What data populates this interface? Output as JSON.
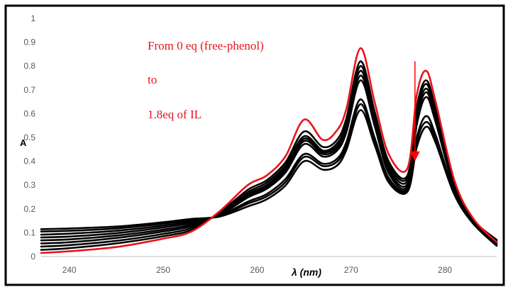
{
  "chart_data": {
    "type": "line",
    "ylabel": "A",
    "xlabel": "λ (nm)",
    "xlim": [
      237,
      285.5
    ],
    "ylim": [
      0,
      1
    ],
    "x_ticks": [
      240,
      250,
      260,
      270,
      280
    ],
    "y_ticks": [
      "0",
      "0.1",
      "0.2",
      "0.3",
      "0.4",
      "0.5",
      "0.6",
      "0.7",
      "0.8",
      "0.9",
      "1"
    ],
    "grid": false,
    "legend": "none",
    "annotations": [
      "From 0 eq (free-phenol)",
      "to",
      "1.8eq of IL"
    ],
    "arrow": {
      "x": 276.8,
      "y_from": 0.82,
      "y_to": 0.4,
      "color": "#ff0000",
      "meaning": "decreasing absorbance with added IL"
    },
    "colors": {
      "first_series": "#e8141b",
      "other_series": "#000000"
    },
    "series": [
      {
        "color": "#e8141b",
        "values": [
          [
            237,
            0.015
          ],
          [
            240,
            0.022
          ],
          [
            245,
            0.04
          ],
          [
            250,
            0.075
          ],
          [
            253,
            0.105
          ],
          [
            256,
            0.19
          ],
          [
            259,
            0.3
          ],
          [
            261,
            0.34
          ],
          [
            263,
            0.42
          ],
          [
            265,
            0.575
          ],
          [
            267,
            0.49
          ],
          [
            268.5,
            0.53
          ],
          [
            269.5,
            0.62
          ],
          [
            271,
            0.875
          ],
          [
            272.5,
            0.65
          ],
          [
            274,
            0.43
          ],
          [
            276,
            0.37
          ],
          [
            277,
            0.68
          ],
          [
            278,
            0.78
          ],
          [
            279,
            0.65
          ],
          [
            281,
            0.32
          ],
          [
            283,
            0.16
          ],
          [
            285.5,
            0.06
          ]
        ]
      },
      {
        "color": "#000000",
        "values": [
          [
            237,
            0.028
          ],
          [
            240,
            0.035
          ],
          [
            245,
            0.055
          ],
          [
            250,
            0.085
          ],
          [
            253,
            0.112
          ],
          [
            256,
            0.185
          ],
          [
            259,
            0.28
          ],
          [
            261,
            0.32
          ],
          [
            263,
            0.395
          ],
          [
            265,
            0.525
          ],
          [
            267,
            0.46
          ],
          [
            268.5,
            0.49
          ],
          [
            269.5,
            0.58
          ],
          [
            271,
            0.82
          ],
          [
            272.5,
            0.61
          ],
          [
            274,
            0.4
          ],
          [
            276,
            0.34
          ],
          [
            277,
            0.63
          ],
          [
            278,
            0.74
          ],
          [
            279,
            0.62
          ],
          [
            281,
            0.305
          ],
          [
            283,
            0.155
          ],
          [
            285.5,
            0.07
          ]
        ]
      },
      {
        "color": "#000000",
        "values": [
          [
            237,
            0.042
          ],
          [
            240,
            0.048
          ],
          [
            245,
            0.066
          ],
          [
            250,
            0.095
          ],
          [
            253,
            0.12
          ],
          [
            256,
            0.183
          ],
          [
            259,
            0.27
          ],
          [
            261,
            0.31
          ],
          [
            263,
            0.382
          ],
          [
            265,
            0.505
          ],
          [
            267,
            0.445
          ],
          [
            268.5,
            0.475
          ],
          [
            269.5,
            0.56
          ],
          [
            271,
            0.8
          ],
          [
            272.5,
            0.595
          ],
          [
            274,
            0.388
          ],
          [
            276,
            0.33
          ],
          [
            277,
            0.61
          ],
          [
            278,
            0.725
          ],
          [
            279,
            0.605
          ],
          [
            281,
            0.3
          ],
          [
            283,
            0.152
          ],
          [
            285.5,
            0.066
          ]
        ]
      },
      {
        "color": "#000000",
        "values": [
          [
            237,
            0.055
          ],
          [
            240,
            0.06
          ],
          [
            245,
            0.078
          ],
          [
            250,
            0.105
          ],
          [
            253,
            0.128
          ],
          [
            256,
            0.18
          ],
          [
            259,
            0.262
          ],
          [
            261,
            0.3
          ],
          [
            263,
            0.372
          ],
          [
            265,
            0.495
          ],
          [
            267,
            0.438
          ],
          [
            268.5,
            0.465
          ],
          [
            269.5,
            0.548
          ],
          [
            271,
            0.78
          ],
          [
            272.5,
            0.58
          ],
          [
            274,
            0.375
          ],
          [
            276,
            0.318
          ],
          [
            277,
            0.595
          ],
          [
            278,
            0.705
          ],
          [
            279,
            0.592
          ],
          [
            281,
            0.295
          ],
          [
            283,
            0.15
          ],
          [
            285.5,
            0.062
          ]
        ]
      },
      {
        "color": "#000000",
        "values": [
          [
            237,
            0.068
          ],
          [
            240,
            0.072
          ],
          [
            245,
            0.088
          ],
          [
            250,
            0.113
          ],
          [
            253,
            0.135
          ],
          [
            256,
            0.178
          ],
          [
            259,
            0.255
          ],
          [
            261,
            0.292
          ],
          [
            263,
            0.362
          ],
          [
            265,
            0.485
          ],
          [
            267,
            0.43
          ],
          [
            268.5,
            0.455
          ],
          [
            269.5,
            0.535
          ],
          [
            271,
            0.76
          ],
          [
            272.5,
            0.565
          ],
          [
            274,
            0.362
          ],
          [
            276,
            0.305
          ],
          [
            277,
            0.575
          ],
          [
            278,
            0.69
          ],
          [
            279,
            0.58
          ],
          [
            281,
            0.29
          ],
          [
            283,
            0.148
          ],
          [
            285.5,
            0.058
          ]
        ]
      },
      {
        "color": "#000000",
        "values": [
          [
            237,
            0.08
          ],
          [
            240,
            0.084
          ],
          [
            245,
            0.098
          ],
          [
            250,
            0.122
          ],
          [
            253,
            0.142
          ],
          [
            256,
            0.175
          ],
          [
            259,
            0.248
          ],
          [
            261,
            0.284
          ],
          [
            263,
            0.352
          ],
          [
            265,
            0.472
          ],
          [
            267,
            0.42
          ],
          [
            268.5,
            0.445
          ],
          [
            269.5,
            0.522
          ],
          [
            271,
            0.74
          ],
          [
            272.5,
            0.55
          ],
          [
            274,
            0.35
          ],
          [
            276,
            0.295
          ],
          [
            277,
            0.555
          ],
          [
            278,
            0.67
          ],
          [
            279,
            0.565
          ],
          [
            281,
            0.285
          ],
          [
            283,
            0.146
          ],
          [
            285.5,
            0.054
          ]
        ]
      },
      {
        "color": "#000000",
        "values": [
          [
            237,
            0.092
          ],
          [
            240,
            0.096
          ],
          [
            245,
            0.108
          ],
          [
            250,
            0.13
          ],
          [
            253,
            0.148
          ],
          [
            256,
            0.172
          ],
          [
            259,
            0.23
          ],
          [
            261,
            0.262
          ],
          [
            263,
            0.325
          ],
          [
            265,
            0.43
          ],
          [
            267,
            0.39
          ],
          [
            268.5,
            0.41
          ],
          [
            269.5,
            0.48
          ],
          [
            271,
            0.66
          ],
          [
            272.5,
            0.5
          ],
          [
            274,
            0.33
          ],
          [
            276,
            0.285
          ],
          [
            277,
            0.5
          ],
          [
            278,
            0.59
          ],
          [
            279,
            0.51
          ],
          [
            281,
            0.27
          ],
          [
            283,
            0.142
          ],
          [
            285.5,
            0.05
          ]
        ]
      },
      {
        "color": "#000000",
        "values": [
          [
            237,
            0.105
          ],
          [
            240,
            0.108
          ],
          [
            245,
            0.118
          ],
          [
            250,
            0.138
          ],
          [
            253,
            0.154
          ],
          [
            256,
            0.17
          ],
          [
            259,
            0.222
          ],
          [
            261,
            0.252
          ],
          [
            263,
            0.312
          ],
          [
            265,
            0.418
          ],
          [
            267,
            0.38
          ],
          [
            268.5,
            0.398
          ],
          [
            269.5,
            0.465
          ],
          [
            271,
            0.64
          ],
          [
            272.5,
            0.488
          ],
          [
            274,
            0.322
          ],
          [
            276,
            0.278
          ],
          [
            277,
            0.485
          ],
          [
            278,
            0.565
          ],
          [
            279,
            0.495
          ],
          [
            281,
            0.265
          ],
          [
            283,
            0.14
          ],
          [
            285.5,
            0.047
          ]
        ]
      },
      {
        "color": "#000000",
        "values": [
          [
            237,
            0.115
          ],
          [
            240,
            0.118
          ],
          [
            245,
            0.126
          ],
          [
            250,
            0.144
          ],
          [
            253,
            0.158
          ],
          [
            256,
            0.168
          ],
          [
            259,
            0.21
          ],
          [
            261,
            0.24
          ],
          [
            263,
            0.298
          ],
          [
            265,
            0.4
          ],
          [
            267,
            0.365
          ],
          [
            268.5,
            0.382
          ],
          [
            269.5,
            0.448
          ],
          [
            271,
            0.615
          ],
          [
            272.5,
            0.47
          ],
          [
            274,
            0.312
          ],
          [
            276,
            0.272
          ],
          [
            277,
            0.46
          ],
          [
            278,
            0.545
          ],
          [
            279,
            0.478
          ],
          [
            281,
            0.26
          ],
          [
            283,
            0.138
          ],
          [
            285.5,
            0.045
          ]
        ]
      }
    ]
  }
}
